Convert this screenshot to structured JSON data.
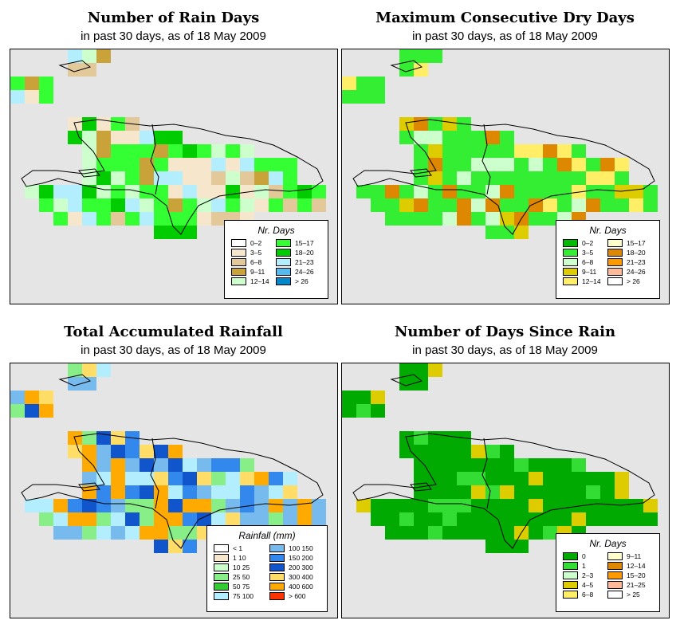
{
  "panels": [
    {
      "title": "Number of Rain Days",
      "subtitle": "in past 30 days, as of  18 May 2009",
      "legend_title": "Nr. Days",
      "legend": [
        {
          "label": "0–2",
          "color": "#ffffff"
        },
        {
          "label": "3–5",
          "color": "#f5e6cc"
        },
        {
          "label": "6–8",
          "color": "#e3c99a"
        },
        {
          "label": "9–11",
          "color": "#c9a23a"
        },
        {
          "label": "12–14",
          "color": "#ccffcc"
        },
        {
          "label": "15–17",
          "color": "#33ff33"
        },
        {
          "label": "18–20",
          "color": "#00cc00"
        },
        {
          "label": "21–23",
          "color": "#b3eeff"
        },
        {
          "label": "24–26",
          "color": "#55bbee"
        },
        {
          "label": "> 26",
          "color": "#0088cc"
        }
      ]
    },
    {
      "title": "Maximum Consecutive Dry Days",
      "subtitle": "in past 30 days, as of  18 May 2009",
      "legend_title": "Nr. Days",
      "legend": [
        {
          "label": "0–2",
          "color": "#00bb00"
        },
        {
          "label": "3–5",
          "color": "#33ee33"
        },
        {
          "label": "6–8",
          "color": "#ccffcc"
        },
        {
          "label": "9–11",
          "color": "#ddcc00"
        },
        {
          "label": "12–14",
          "color": "#ffee66"
        },
        {
          "label": "15–17",
          "color": "#ffffcc"
        },
        {
          "label": "18–20",
          "color": "#dd8800"
        },
        {
          "label": "21–23",
          "color": "#ff9900"
        },
        {
          "label": "24–26",
          "color": "#ffbb99"
        },
        {
          "label": "> 26",
          "color": "#ffffff"
        }
      ]
    },
    {
      "title": "Total Accumulated Rainfall",
      "subtitle": "in past 30 days, as of  18 May 2009",
      "legend_title": "Rainfall (mm)",
      "legend": [
        {
          "label": "< 1",
          "color": "#ffffff"
        },
        {
          "label": "1   10",
          "color": "#f5e6cc"
        },
        {
          "label": "10   25",
          "color": "#ccffcc"
        },
        {
          "label": "25   50",
          "color": "#88ee88"
        },
        {
          "label": "50   75",
          "color": "#33cc33"
        },
        {
          "label": "75   100",
          "color": "#b3eeff"
        },
        {
          "label": "100  150",
          "color": "#77bbee"
        },
        {
          "label": "150  200",
          "color": "#3388ee"
        },
        {
          "label": "200  300",
          "color": "#1155cc"
        },
        {
          "label": "300  400",
          "color": "#ffdd66"
        },
        {
          "label": "400  600",
          "color": "#ffaa00"
        },
        {
          "label": "> 600",
          "color": "#ff3300"
        }
      ]
    },
    {
      "title": "Number of Days Since Rain",
      "subtitle": "in past 30 days, as of  18 May 2009",
      "legend_title": "Nr. Days",
      "legend": [
        {
          "label": "0",
          "color": "#00aa00"
        },
        {
          "label": "1",
          "color": "#33dd33"
        },
        {
          "label": "2–3",
          "color": "#ccffcc"
        },
        {
          "label": "4–5",
          "color": "#ddcc00"
        },
        {
          "label": "6–8",
          "color": "#ffee66"
        },
        {
          "label": "9–11",
          "color": "#ffffcc"
        },
        {
          "label": "12–14",
          "color": "#dd8800"
        },
        {
          "label": "15–20",
          "color": "#ff9900"
        },
        {
          "label": "21–25",
          "color": "#ffbb99"
        },
        {
          "label": "> 25",
          "color": "#ffffff"
        }
      ]
    }
  ],
  "colors": {
    "map_background": "#e5e5e5",
    "outline": "#000000"
  }
}
